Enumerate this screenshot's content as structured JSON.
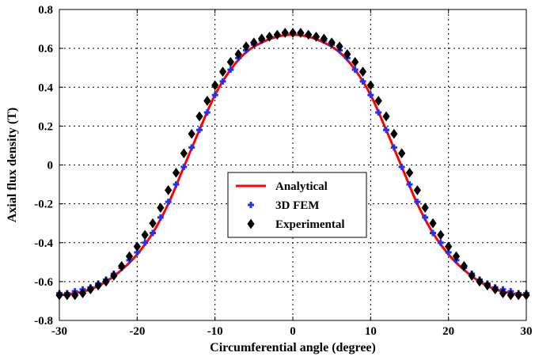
{
  "chart_data": {
    "type": "line",
    "title": "",
    "xlabel": "Circumferential angle (degree)",
    "ylabel": "Axial flux density (T)",
    "xlim": [
      -30,
      30
    ],
    "ylim": [
      -0.8,
      0.8
    ],
    "xticks": [
      -30,
      -20,
      -10,
      0,
      10,
      20,
      30
    ],
    "yticks": [
      -0.8,
      -0.6,
      -0.4,
      -0.2,
      0,
      0.2,
      0.4,
      0.6,
      0.8
    ],
    "xtick_labels": [
      "-30",
      "-20",
      "-10",
      "0",
      "10",
      "20",
      "30"
    ],
    "ytick_labels": [
      "-0.8",
      "-0.6",
      "-0.4",
      "-0.2",
      "0",
      "0.2",
      "0.4",
      "0.6",
      "0.8"
    ],
    "grid": true,
    "legend_position": "center",
    "series": [
      {
        "name": "Analytical",
        "style": "line",
        "color": "#ff0000",
        "x": [
          -30,
          -28,
          -26,
          -24,
          -22,
          -20,
          -18,
          -16,
          -14,
          -12,
          -10,
          -8,
          -6,
          -4,
          -2,
          0,
          2,
          4,
          6,
          8,
          10,
          12,
          14,
          16,
          18,
          20,
          22,
          24,
          26,
          28,
          30
        ],
        "y": [
          -0.67,
          -0.66,
          -0.64,
          -0.6,
          -0.54,
          -0.46,
          -0.35,
          -0.2,
          -0.01,
          0.18,
          0.36,
          0.49,
          0.58,
          0.63,
          0.66,
          0.67,
          0.66,
          0.63,
          0.58,
          0.49,
          0.36,
          0.18,
          -0.01,
          -0.2,
          -0.35,
          -0.46,
          -0.54,
          -0.6,
          -0.64,
          -0.66,
          -0.67
        ]
      },
      {
        "name": "3D FEM",
        "style": "marker-plus",
        "color": "#1e32ff",
        "x": [
          -30,
          -29,
          -28,
          -27,
          -26,
          -25,
          -24,
          -23,
          -22,
          -21,
          -20,
          -19,
          -18,
          -17,
          -16,
          -15,
          -14,
          -13,
          -12,
          -11,
          -10,
          -9,
          -8,
          -7,
          -6,
          -5,
          -4,
          -3,
          -2,
          -1,
          0,
          1,
          2,
          3,
          4,
          5,
          6,
          7,
          8,
          9,
          10,
          11,
          12,
          13,
          14,
          15,
          16,
          17,
          18,
          19,
          20,
          21,
          22,
          23,
          24,
          25,
          26,
          27,
          28,
          29,
          30
        ],
        "y": [
          -0.66,
          -0.66,
          -0.65,
          -0.64,
          -0.63,
          -0.61,
          -0.59,
          -0.56,
          -0.53,
          -0.49,
          -0.45,
          -0.4,
          -0.35,
          -0.27,
          -0.19,
          -0.1,
          -0.01,
          0.09,
          0.18,
          0.27,
          0.36,
          0.43,
          0.49,
          0.55,
          0.59,
          0.62,
          0.64,
          0.66,
          0.67,
          0.68,
          0.68,
          0.68,
          0.67,
          0.66,
          0.64,
          0.62,
          0.59,
          0.55,
          0.49,
          0.43,
          0.36,
          0.27,
          0.18,
          0.09,
          -0.01,
          -0.1,
          -0.19,
          -0.27,
          -0.35,
          -0.4,
          -0.45,
          -0.49,
          -0.53,
          -0.56,
          -0.59,
          -0.61,
          -0.63,
          -0.64,
          -0.65,
          -0.66,
          -0.66
        ]
      },
      {
        "name": "Experimental",
        "style": "marker-diamond",
        "color": "#000000",
        "x": [
          -30,
          -29,
          -28,
          -27,
          -26,
          -25,
          -24,
          -23,
          -22,
          -21,
          -20,
          -19,
          -18,
          -17,
          -16,
          -15,
          -14,
          -13,
          -12,
          -11,
          -10,
          -9,
          -8,
          -7,
          -6,
          -5,
          -4,
          -3,
          -2,
          -1,
          0,
          1,
          2,
          3,
          4,
          5,
          6,
          7,
          8,
          9,
          10,
          11,
          12,
          13,
          14,
          15,
          16,
          17,
          18,
          19,
          20,
          21,
          22,
          23,
          24,
          25,
          26,
          27,
          28,
          29,
          30
        ],
        "y": [
          -0.67,
          -0.67,
          -0.67,
          -0.66,
          -0.64,
          -0.62,
          -0.6,
          -0.57,
          -0.52,
          -0.47,
          -0.42,
          -0.36,
          -0.3,
          -0.22,
          -0.13,
          -0.04,
          0.06,
          0.16,
          0.25,
          0.33,
          0.41,
          0.48,
          0.53,
          0.57,
          0.61,
          0.63,
          0.65,
          0.66,
          0.67,
          0.68,
          0.68,
          0.68,
          0.67,
          0.66,
          0.65,
          0.63,
          0.61,
          0.57,
          0.53,
          0.48,
          0.41,
          0.33,
          0.25,
          0.16,
          0.06,
          -0.04,
          -0.13,
          -0.22,
          -0.3,
          -0.36,
          -0.42,
          -0.47,
          -0.52,
          -0.57,
          -0.6,
          -0.62,
          -0.64,
          -0.66,
          -0.67,
          -0.67,
          -0.67
        ]
      }
    ]
  }
}
